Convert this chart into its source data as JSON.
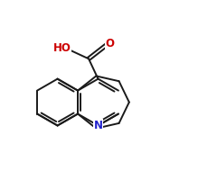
{
  "background_color": "#ffffff",
  "atom_colors": {
    "N": "#2222cc",
    "O": "#cc0000"
  },
  "bond_color": "#1a1a1a",
  "bond_width": 1.4,
  "figsize": [
    2.4,
    2.0
  ],
  "dpi": 100,
  "xlim": [
    0,
    10
  ],
  "ylim": [
    0,
    8.33
  ]
}
